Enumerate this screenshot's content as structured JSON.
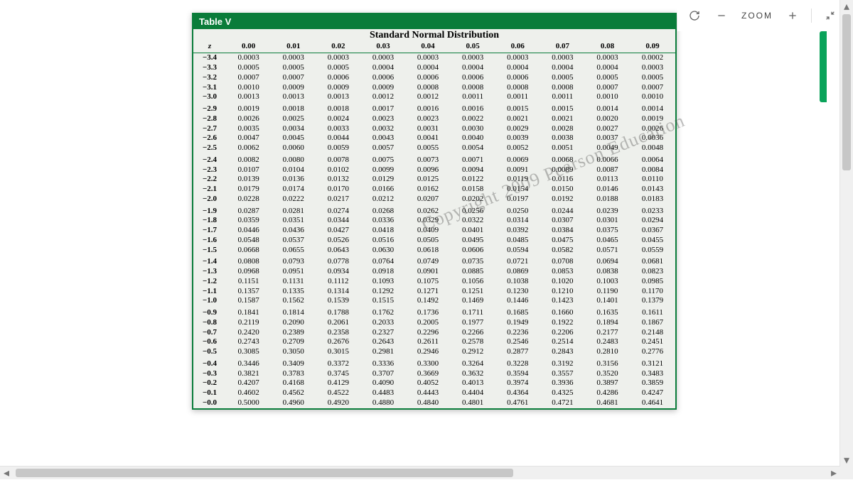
{
  "toolbar": {
    "zoom_label": "ZOOM"
  },
  "table": {
    "label": "Table V",
    "title": "Standard Normal Distribution",
    "z_header": "z",
    "col_headers": [
      "0.00",
      "0.01",
      "0.02",
      "0.03",
      "0.04",
      "0.05",
      "0.06",
      "0.07",
      "0.08",
      "0.09"
    ],
    "groups": [
      [
        {
          "z": "−3.4",
          "v": [
            "0.0003",
            "0.0003",
            "0.0003",
            "0.0003",
            "0.0003",
            "0.0003",
            "0.0003",
            "0.0003",
            "0.0003",
            "0.0002"
          ]
        },
        {
          "z": "−3.3",
          "v": [
            "0.0005",
            "0.0005",
            "0.0005",
            "0.0004",
            "0.0004",
            "0.0004",
            "0.0004",
            "0.0004",
            "0.0004",
            "0.0003"
          ]
        },
        {
          "z": "−3.2",
          "v": [
            "0.0007",
            "0.0007",
            "0.0006",
            "0.0006",
            "0.0006",
            "0.0006",
            "0.0006",
            "0.0005",
            "0.0005",
            "0.0005"
          ]
        },
        {
          "z": "−3.1",
          "v": [
            "0.0010",
            "0.0009",
            "0.0009",
            "0.0009",
            "0.0008",
            "0.0008",
            "0.0008",
            "0.0008",
            "0.0007",
            "0.0007"
          ]
        },
        {
          "z": "−3.0",
          "v": [
            "0.0013",
            "0.0013",
            "0.0013",
            "0.0012",
            "0.0012",
            "0.0011",
            "0.0011",
            "0.0011",
            "0.0010",
            "0.0010"
          ]
        }
      ],
      [
        {
          "z": "−2.9",
          "v": [
            "0.0019",
            "0.0018",
            "0.0018",
            "0.0017",
            "0.0016",
            "0.0016",
            "0.0015",
            "0.0015",
            "0.0014",
            "0.0014"
          ]
        },
        {
          "z": "−2.8",
          "v": [
            "0.0026",
            "0.0025",
            "0.0024",
            "0.0023",
            "0.0023",
            "0.0022",
            "0.0021",
            "0.0021",
            "0.0020",
            "0.0019"
          ]
        },
        {
          "z": "−2.7",
          "v": [
            "0.0035",
            "0.0034",
            "0.0033",
            "0.0032",
            "0.0031",
            "0.0030",
            "0.0029",
            "0.0028",
            "0.0027",
            "0.0026"
          ]
        },
        {
          "z": "−2.6",
          "v": [
            "0.0047",
            "0.0045",
            "0.0044",
            "0.0043",
            "0.0041",
            "0.0040",
            "0.0039",
            "0.0038",
            "0.0037",
            "0.0036"
          ]
        },
        {
          "z": "−2.5",
          "v": [
            "0.0062",
            "0.0060",
            "0.0059",
            "0.0057",
            "0.0055",
            "0.0054",
            "0.0052",
            "0.0051",
            "0.0049",
            "0.0048"
          ]
        }
      ],
      [
        {
          "z": "−2.4",
          "v": [
            "0.0082",
            "0.0080",
            "0.0078",
            "0.0075",
            "0.0073",
            "0.0071",
            "0.0069",
            "0.0068",
            "0.0066",
            "0.0064"
          ]
        },
        {
          "z": "−2.3",
          "v": [
            "0.0107",
            "0.0104",
            "0.0102",
            "0.0099",
            "0.0096",
            "0.0094",
            "0.0091",
            "0.0089",
            "0.0087",
            "0.0084"
          ]
        },
        {
          "z": "−2.2",
          "v": [
            "0.0139",
            "0.0136",
            "0.0132",
            "0.0129",
            "0.0125",
            "0.0122",
            "0.0119",
            "0.0116",
            "0.0113",
            "0.0110"
          ]
        },
        {
          "z": "−2.1",
          "v": [
            "0.0179",
            "0.0174",
            "0.0170",
            "0.0166",
            "0.0162",
            "0.0158",
            "0.0154",
            "0.0150",
            "0.0146",
            "0.0143"
          ]
        },
        {
          "z": "−2.0",
          "v": [
            "0.0228",
            "0.0222",
            "0.0217",
            "0.0212",
            "0.0207",
            "0.0202",
            "0.0197",
            "0.0192",
            "0.0188",
            "0.0183"
          ]
        }
      ],
      [
        {
          "z": "−1.9",
          "v": [
            "0.0287",
            "0.0281",
            "0.0274",
            "0.0268",
            "0.0262",
            "0.0256",
            "0.0250",
            "0.0244",
            "0.0239",
            "0.0233"
          ]
        },
        {
          "z": "−1.8",
          "v": [
            "0.0359",
            "0.0351",
            "0.0344",
            "0.0336",
            "0.0329",
            "0.0322",
            "0.0314",
            "0.0307",
            "0.0301",
            "0.0294"
          ]
        },
        {
          "z": "−1.7",
          "v": [
            "0.0446",
            "0.0436",
            "0.0427",
            "0.0418",
            "0.0409",
            "0.0401",
            "0.0392",
            "0.0384",
            "0.0375",
            "0.0367"
          ]
        },
        {
          "z": "−1.6",
          "v": [
            "0.0548",
            "0.0537",
            "0.0526",
            "0.0516",
            "0.0505",
            "0.0495",
            "0.0485",
            "0.0475",
            "0.0465",
            "0.0455"
          ]
        },
        {
          "z": "−1.5",
          "v": [
            "0.0668",
            "0.0655",
            "0.0643",
            "0.0630",
            "0.0618",
            "0.0606",
            "0.0594",
            "0.0582",
            "0.0571",
            "0.0559"
          ]
        }
      ],
      [
        {
          "z": "−1.4",
          "v": [
            "0.0808",
            "0.0793",
            "0.0778",
            "0.0764",
            "0.0749",
            "0.0735",
            "0.0721",
            "0.0708",
            "0.0694",
            "0.0681"
          ]
        },
        {
          "z": "−1.3",
          "v": [
            "0.0968",
            "0.0951",
            "0.0934",
            "0.0918",
            "0.0901",
            "0.0885",
            "0.0869",
            "0.0853",
            "0.0838",
            "0.0823"
          ]
        },
        {
          "z": "−1.2",
          "v": [
            "0.1151",
            "0.1131",
            "0.1112",
            "0.1093",
            "0.1075",
            "0.1056",
            "0.1038",
            "0.1020",
            "0.1003",
            "0.0985"
          ]
        },
        {
          "z": "−1.1",
          "v": [
            "0.1357",
            "0.1335",
            "0.1314",
            "0.1292",
            "0.1271",
            "0.1251",
            "0.1230",
            "0.1210",
            "0.1190",
            "0.1170"
          ]
        },
        {
          "z": "−1.0",
          "v": [
            "0.1587",
            "0.1562",
            "0.1539",
            "0.1515",
            "0.1492",
            "0.1469",
            "0.1446",
            "0.1423",
            "0.1401",
            "0.1379"
          ]
        }
      ],
      [
        {
          "z": "−0.9",
          "v": [
            "0.1841",
            "0.1814",
            "0.1788",
            "0.1762",
            "0.1736",
            "0.1711",
            "0.1685",
            "0.1660",
            "0.1635",
            "0.1611"
          ]
        },
        {
          "z": "−0.8",
          "v": [
            "0.2119",
            "0.2090",
            "0.2061",
            "0.2033",
            "0.2005",
            "0.1977",
            "0.1949",
            "0.1922",
            "0.1894",
            "0.1867"
          ]
        },
        {
          "z": "−0.7",
          "v": [
            "0.2420",
            "0.2389",
            "0.2358",
            "0.2327",
            "0.2296",
            "0.2266",
            "0.2236",
            "0.2206",
            "0.2177",
            "0.2148"
          ]
        },
        {
          "z": "−0.6",
          "v": [
            "0.2743",
            "0.2709",
            "0.2676",
            "0.2643",
            "0.2611",
            "0.2578",
            "0.2546",
            "0.2514",
            "0.2483",
            "0.2451"
          ]
        },
        {
          "z": "−0.5",
          "v": [
            "0.3085",
            "0.3050",
            "0.3015",
            "0.2981",
            "0.2946",
            "0.2912",
            "0.2877",
            "0.2843",
            "0.2810",
            "0.2776"
          ]
        }
      ],
      [
        {
          "z": "−0.4",
          "v": [
            "0.3446",
            "0.3409",
            "0.3372",
            "0.3336",
            "0.3300",
            "0.3264",
            "0.3228",
            "0.3192",
            "0.3156",
            "0.3121"
          ]
        },
        {
          "z": "−0.3",
          "v": [
            "0.3821",
            "0.3783",
            "0.3745",
            "0.3707",
            "0.3669",
            "0.3632",
            "0.3594",
            "0.3557",
            "0.3520",
            "0.3483"
          ]
        },
        {
          "z": "−0.2",
          "v": [
            "0.4207",
            "0.4168",
            "0.4129",
            "0.4090",
            "0.4052",
            "0.4013",
            "0.3974",
            "0.3936",
            "0.3897",
            "0.3859"
          ]
        },
        {
          "z": "−0.1",
          "v": [
            "0.4602",
            "0.4562",
            "0.4522",
            "0.4483",
            "0.4443",
            "0.4404",
            "0.4364",
            "0.4325",
            "0.4286",
            "0.4247"
          ]
        },
        {
          "z": "−0.0",
          "v": [
            "0.5000",
            "0.4960",
            "0.4920",
            "0.4880",
            "0.4840",
            "0.4801",
            "0.4761",
            "0.4721",
            "0.4681",
            "0.4641"
          ]
        }
      ]
    ]
  },
  "watermark": "Copyright 2009 Pearson Education"
}
